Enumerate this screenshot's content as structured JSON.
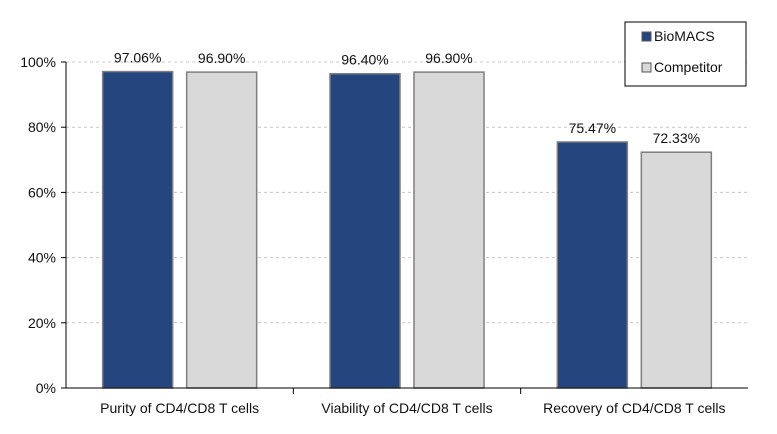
{
  "chart_data": {
    "type": "bar",
    "title": "",
    "xlabel": "",
    "ylabel": "",
    "ylim": [
      0,
      100
    ],
    "ytick_step": 20,
    "ytick_suffix": "%",
    "grid": "horizontal dashed",
    "legend_position": "top-right",
    "categories": [
      "Purity of CD4/CD8 T cells",
      "Viability of CD4/CD8 T cells",
      "Recovery of CD4/CD8 T cells"
    ],
    "series": [
      {
        "name": "BioMACS",
        "color": "#25457F",
        "values": [
          97.06,
          96.4,
          75.47
        ],
        "labels": [
          "97.06%",
          "96.40%",
          "75.47%"
        ]
      },
      {
        "name": "Competitor",
        "color": "#D9D9D9",
        "values": [
          96.9,
          96.9,
          72.33
        ],
        "labels": [
          "96.90%",
          "96.90%",
          "72.33%"
        ]
      }
    ]
  }
}
